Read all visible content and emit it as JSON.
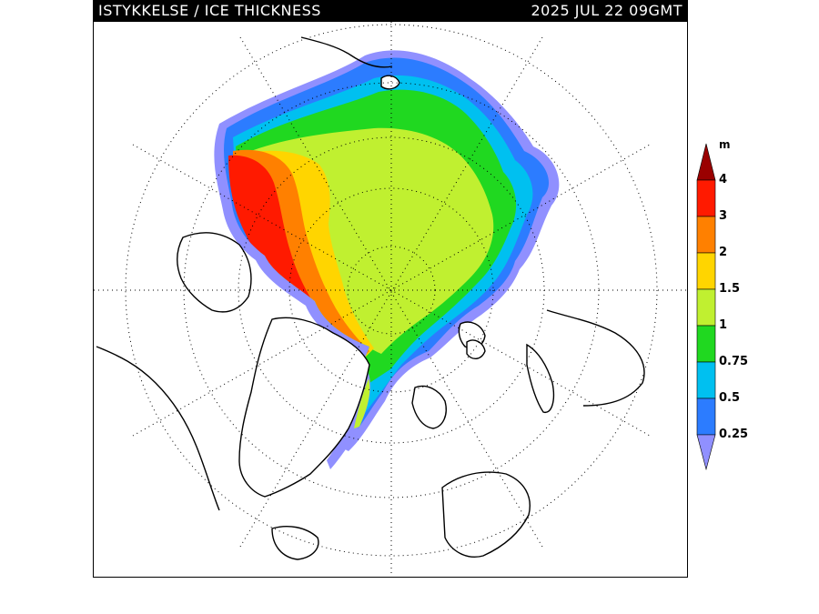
{
  "title": {
    "left": "ISTYKKELSE / ICE THICKNESS",
    "right": "2025 JUL 22 09GMT"
  },
  "legend": {
    "unit": "m",
    "labels": [
      "4",
      "3",
      "2",
      "1.5",
      "1",
      "0.75",
      "0.5",
      "0.25"
    ],
    "colors": [
      "#9a0000",
      "#ff1a00",
      "#ff8000",
      "#ffd500",
      "#c0f030",
      "#20d820",
      "#00c0f0",
      "#2c7cff",
      "#9090ff"
    ]
  },
  "map": {
    "projection": "north polar stereographic",
    "graticule": "dotted",
    "land_color": "#ffffff",
    "coast_color": "#000000",
    "ocean_color": "#ffffff"
  }
}
